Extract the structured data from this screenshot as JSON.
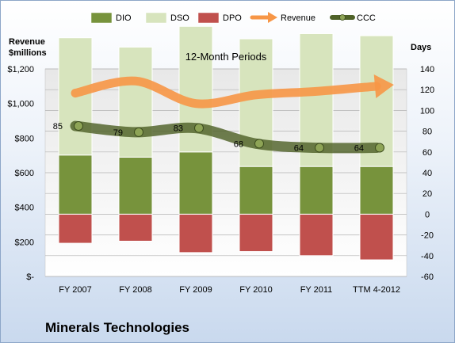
{
  "company": "Minerals Technologies",
  "chart_data": {
    "type": "combo",
    "title": "12-Month Periods",
    "left_axis": {
      "label_line1": "Revenue",
      "label_line2": "$millions",
      "range": [
        0,
        1200
      ],
      "ticks": [
        "$-",
        "$200",
        "$400",
        "$600",
        "$800",
        "$1,000",
        "$1,200"
      ]
    },
    "right_axis": {
      "label": "Days",
      "range": [
        -60,
        140
      ],
      "ticks": [
        "-60",
        "-40",
        "-20",
        "0",
        "20",
        "40",
        "60",
        "80",
        "100",
        "120",
        "140"
      ]
    },
    "categories": [
      "FY 2007",
      "FY 2008",
      "FY 2009",
      "FY 2010",
      "FY 2011",
      "TTM 4-2012"
    ],
    "legend": [
      {
        "name": "DIO",
        "kind": "bar",
        "color": "#77933c"
      },
      {
        "name": "DSO",
        "kind": "bar",
        "color": "#d7e4bd"
      },
      {
        "name": "DPO",
        "kind": "bar",
        "color": "#c0504d"
      },
      {
        "name": "Revenue",
        "kind": "arrow",
        "color": "#f79646"
      },
      {
        "name": "CCC",
        "kind": "line",
        "color": "#4f6228"
      }
    ],
    "series": [
      {
        "name": "DIO",
        "values": [
          57,
          55,
          60,
          46,
          46,
          46
        ]
      },
      {
        "name": "DSO",
        "values": [
          113,
          106,
          121,
          123,
          128,
          126
        ]
      },
      {
        "name": "DPO",
        "values": [
          -28,
          -26,
          -37,
          -36,
          -40,
          -44
        ]
      },
      {
        "name": "CCC",
        "values": [
          85,
          79,
          83,
          68,
          64,
          64
        ],
        "labels": [
          "85",
          "79",
          "83",
          "68",
          "64",
          "64"
        ]
      },
      {
        "name": "Revenue",
        "values": [
          1060,
          1130,
          1000,
          1050,
          1070,
          1100
        ]
      }
    ],
    "grid": true,
    "legend_position": "top"
  }
}
